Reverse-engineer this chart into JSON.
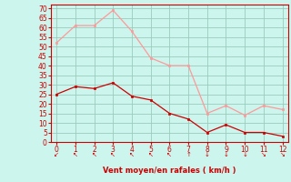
{
  "x": [
    0,
    1,
    2,
    3,
    4,
    5,
    6,
    7,
    8,
    9,
    10,
    11,
    12
  ],
  "wind_avg": [
    25,
    29,
    28,
    31,
    24,
    22,
    15,
    12,
    5,
    9,
    5,
    5,
    3
  ],
  "wind_gust": [
    52,
    61,
    61,
    69,
    58,
    44,
    40,
    40,
    15,
    19,
    14,
    19,
    17
  ],
  "avg_color": "#cc0000",
  "gust_color": "#ff9999",
  "bg_color": "#ccf5ee",
  "grid_color": "#99ccbb",
  "xlabel": "Vent moyen/en rafales ( km/h )",
  "xlabel_color": "#cc0000",
  "tick_color": "#cc0000",
  "spine_color": "#cc0000",
  "ylabel_ticks": [
    0,
    5,
    10,
    15,
    20,
    25,
    30,
    35,
    40,
    45,
    50,
    55,
    60,
    65,
    70
  ],
  "ylim": [
    0,
    72
  ],
  "xlim": [
    -0.3,
    12.3
  ],
  "arrow_chars": [
    "↙",
    "↖",
    "↖",
    "↖",
    "↖",
    "↖",
    "↖",
    "↑",
    "↓",
    "↓",
    "↓",
    "↘",
    "↘"
  ]
}
